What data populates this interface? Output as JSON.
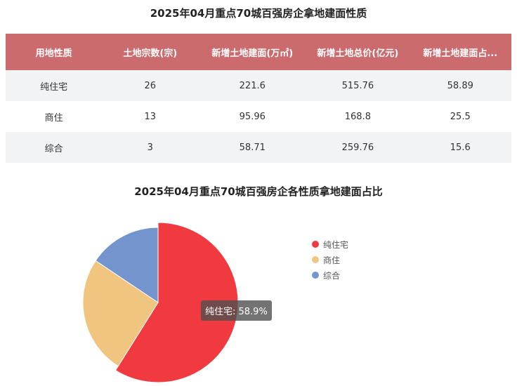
{
  "table_title": "2025年04月重点70城百强房企拿地建面性质",
  "columns": [
    "用地性质",
    "土地宗数(宗)",
    "新增土地建面(万㎡)",
    "新增土地总价(亿元)",
    "新增土地建面占..."
  ],
  "rows": [
    [
      "纯住宅",
      "26",
      "221.6",
      "515.76",
      "58.89"
    ],
    [
      "商住",
      "13",
      "95.96",
      "168.8",
      "25.5"
    ],
    [
      "综合",
      "3",
      "58.71",
      "259.76",
      "15.6"
    ]
  ],
  "tooltip": "纯住宅: 58.9%",
  "header_color": "#cc6b6e",
  "chart_data": {
    "type": "pie",
    "title": "2025年04月重点70城百强房企各性质拿地建面占比",
    "categories": [
      "纯住宅",
      "商住",
      "综合"
    ],
    "values": [
      58.89,
      25.5,
      15.6
    ],
    "colors": [
      "#f03a3f",
      "#efc57f",
      "#7394cc"
    ],
    "highlighted": "纯住宅",
    "legend_position": "right"
  }
}
